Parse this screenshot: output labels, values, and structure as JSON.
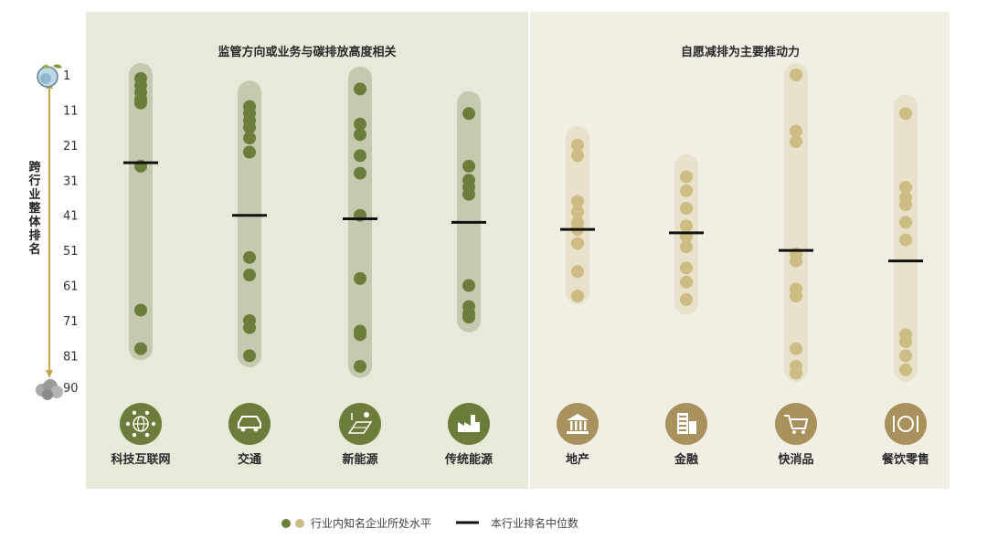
{
  "chart_data": {
    "type": "scatter",
    "ylabel": "跨行业整体排名",
    "y_ticks": [
      1,
      11,
      21,
      31,
      41,
      51,
      61,
      71,
      81,
      90
    ],
    "ylim": [
      1,
      90
    ],
    "y_inverted": true,
    "groups": [
      {
        "title": "监管方向或业务与碳排放高度相关",
        "color": "#6b7d3a",
        "band_color": "#c4cab0",
        "panel_color": "#e6ead8"
      },
      {
        "title": "自愿减排为主要推动力",
        "color": "#cdbd84",
        "band_color": "#e8e1cc",
        "panel_color": "#f1eee4"
      }
    ],
    "categories": [
      {
        "name": "科技互联网",
        "group": 0,
        "icon": "network-globe-icon",
        "points": [
          2,
          4,
          6,
          8,
          9,
          27,
          68,
          79
        ],
        "median": 26,
        "range": [
          0,
          81
        ]
      },
      {
        "name": "交通",
        "group": 0,
        "icon": "car-icon",
        "points": [
          10,
          12,
          14,
          16,
          19,
          23,
          53,
          58,
          71,
          73,
          81
        ],
        "median": 41,
        "range": [
          6,
          83
        ]
      },
      {
        "name": "新能源",
        "group": 0,
        "icon": "solar-power-icon",
        "points": [
          5,
          15,
          18,
          24,
          29,
          41,
          59,
          74,
          75,
          84
        ],
        "median": 42,
        "range": [
          2,
          86
        ]
      },
      {
        "name": "传统能源",
        "group": 0,
        "icon": "factory-icon",
        "points": [
          12,
          27,
          31,
          33,
          35,
          61,
          67,
          69,
          70
        ],
        "median": 43,
        "range": [
          9,
          73
        ]
      },
      {
        "name": "地产",
        "group": 1,
        "icon": "bank-building-icon",
        "points": [
          21,
          24,
          37,
          40,
          43,
          45,
          49,
          57,
          64
        ],
        "median": 45,
        "range": [
          19,
          65
        ]
      },
      {
        "name": "金融",
        "group": 1,
        "icon": "office-building-icon",
        "points": [
          30,
          34,
          39,
          44,
          47,
          50,
          56,
          60,
          65
        ],
        "median": 46,
        "range": [
          27,
          68
        ]
      },
      {
        "name": "快消品",
        "group": 1,
        "icon": "shopping-cart-icon",
        "points": [
          1,
          17,
          20,
          52,
          54,
          62,
          64,
          79,
          84,
          86
        ],
        "median": 51,
        "range": [
          0,
          87
        ]
      },
      {
        "name": "餐饮零售",
        "group": 1,
        "icon": "dining-plate-icon",
        "points": [
          12,
          33,
          36,
          38,
          43,
          48,
          75,
          77,
          81,
          85
        ],
        "median": 54,
        "range": [
          10,
          87
        ]
      }
    ],
    "legend": [
      {
        "label": "行业内知名企业所处水平",
        "marker": "dots"
      },
      {
        "label": "本行业排名中位数",
        "marker": "line"
      }
    ]
  }
}
